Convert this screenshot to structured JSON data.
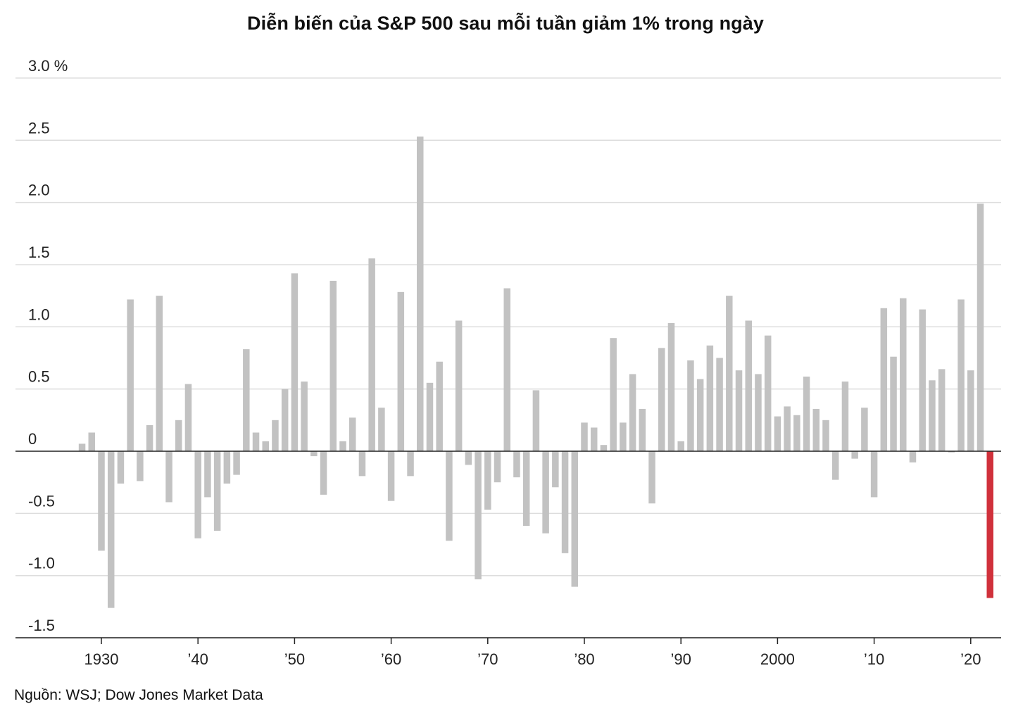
{
  "chart_data": {
    "type": "bar",
    "title": "Diễn biến của S&P 500 sau mỗi tuần giảm 1% trong ngày",
    "source": "Nguồn: WSJ; Dow Jones Market Data",
    "ylabel": "%",
    "ylim": [
      -1.5,
      3.0
    ],
    "y_ticks": [
      3.0,
      2.5,
      2.0,
      1.5,
      1.0,
      0.5,
      0,
      -0.5,
      -1.0,
      -1.5
    ],
    "y_tick_labels": [
      "3.0 %",
      "2.5",
      "2.0",
      "1.5",
      "1.0",
      "0.5",
      "0",
      "-0.5",
      "-1.0",
      "-1.5"
    ],
    "x_ticks": [
      1930,
      1940,
      1950,
      1960,
      1970,
      1980,
      1990,
      2000,
      2010,
      2020
    ],
    "x_tick_labels": [
      "1930",
      "’40",
      "’50",
      "’60",
      "’70",
      "’80",
      "’90",
      "2000",
      "’10",
      "’20"
    ],
    "colors": {
      "bar": "#c2c2c2",
      "highlight": "#d0313b",
      "grid": "#dddddd",
      "axis": "#222222"
    },
    "highlight_year": 2022,
    "years": [
      1928,
      1929,
      1930,
      1931,
      1932,
      1933,
      1934,
      1935,
      1936,
      1937,
      1938,
      1939,
      1940,
      1941,
      1942,
      1943,
      1944,
      1945,
      1946,
      1947,
      1948,
      1949,
      1950,
      1951,
      1952,
      1953,
      1954,
      1955,
      1956,
      1957,
      1958,
      1959,
      1960,
      1961,
      1962,
      1963,
      1964,
      1965,
      1966,
      1967,
      1968,
      1969,
      1970,
      1971,
      1972,
      1973,
      1974,
      1975,
      1976,
      1977,
      1978,
      1979,
      1980,
      1981,
      1982,
      1983,
      1984,
      1985,
      1986,
      1987,
      1988,
      1989,
      1990,
      1991,
      1992,
      1993,
      1994,
      1995,
      1996,
      1997,
      1998,
      1999,
      2000,
      2001,
      2002,
      2003,
      2004,
      2005,
      2006,
      2007,
      2008,
      2009,
      2010,
      2011,
      2012,
      2013,
      2014,
      2015,
      2016,
      2017,
      2018,
      2019,
      2020,
      2021,
      2022
    ],
    "values": [
      0.06,
      0.15,
      -0.8,
      -1.26,
      -0.26,
      1.22,
      -0.24,
      0.21,
      1.25,
      -0.41,
      0.25,
      0.54,
      -0.7,
      -0.37,
      -0.64,
      -0.26,
      -0.19,
      0.82,
      0.15,
      0.08,
      0.25,
      0.5,
      1.43,
      0.56,
      -0.04,
      -0.35,
      1.37,
      0.08,
      0.27,
      -0.2,
      1.55,
      0.35,
      -0.4,
      1.28,
      -0.2,
      2.53,
      0.55,
      0.72,
      -0.72,
      1.05,
      -0.11,
      -1.03,
      -0.47,
      -0.25,
      1.31,
      -0.21,
      -0.6,
      0.49,
      -0.66,
      -0.29,
      -0.82,
      -1.09,
      0.23,
      0.19,
      0.05,
      0.91,
      0.23,
      0.62,
      0.34,
      -0.42,
      0.83,
      1.03,
      0.08,
      0.73,
      0.58,
      0.85,
      0.75,
      1.25,
      0.65,
      1.05,
      0.62,
      0.93,
      0.28,
      0.36,
      0.29,
      0.6,
      0.34,
      0.25,
      -0.23,
      0.56,
      -0.06,
      0.35,
      -0.37,
      1.15,
      0.76,
      1.23,
      -0.09,
      1.14,
      0.57,
      0.66,
      -0.01,
      1.22,
      0.65,
      1.99,
      -1.18
    ]
  }
}
